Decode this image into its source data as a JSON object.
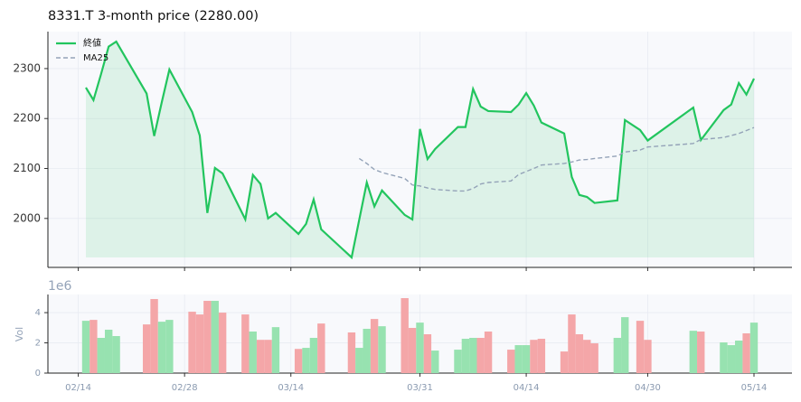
{
  "chart_data": [
    {
      "type": "line",
      "title": "8331.T  3-month price (2280.00)",
      "x": [
        "02/15",
        "02/16",
        "02/17",
        "02/18",
        "02/19",
        "02/23",
        "02/24",
        "02/25",
        "02/26",
        "03/01",
        "03/02",
        "03/03",
        "03/04",
        "03/05",
        "03/08",
        "03/09",
        "03/10",
        "03/11",
        "03/12",
        "03/15",
        "03/16",
        "03/17",
        "03/18",
        "03/22",
        "03/23",
        "03/24",
        "03/25",
        "03/26",
        "03/29",
        "03/30",
        "03/31",
        "04/01",
        "04/02",
        "04/05",
        "04/06",
        "04/07",
        "04/08",
        "04/09",
        "04/12",
        "04/13",
        "04/14",
        "04/15",
        "04/16",
        "04/19",
        "04/20",
        "04/21",
        "04/22",
        "04/23",
        "04/26",
        "04/27",
        "04/29",
        "04/30",
        "05/06",
        "05/07",
        "05/10",
        "05/11",
        "05/12",
        "05/13",
        "05/14"
      ],
      "series": [
        {
          "name": "終値",
          "color": "#22c55e",
          "style": "solid",
          "fill": true,
          "values": [
            2262,
            2237,
            2289,
            2344,
            2354,
            2250,
            2165,
            2233,
            2298,
            2213,
            2166,
            2011,
            2101,
            2090,
            1998,
            2087,
            2069,
            2000,
            2011,
            1969,
            1989,
            2038,
            1978,
            1922,
            1997,
            2072,
            2024,
            2056,
            2007,
            1998,
            2179,
            2119,
            2139,
            2183,
            2183,
            2259,
            2224,
            2215,
            2213,
            2228,
            2251,
            2226,
            2192,
            2170,
            2083,
            2047,
            2043,
            2031,
            2036,
            2197,
            2177,
            2156,
            2222,
            2157,
            2217,
            2228,
            2271,
            2248,
            2280
          ]
        },
        {
          "name": "MA25",
          "color": "#94a3b8",
          "style": "dashed",
          "fill": false,
          "values": [
            null,
            null,
            null,
            null,
            null,
            null,
            null,
            null,
            null,
            null,
            null,
            null,
            null,
            null,
            null,
            null,
            null,
            null,
            null,
            null,
            null,
            null,
            null,
            null,
            2120,
            2110,
            2098,
            2092,
            2080,
            2067,
            2065,
            2061,
            2058,
            2055,
            2055,
            2060,
            2069,
            2072,
            2075,
            2088,
            2094,
            2100,
            2107,
            2110,
            2113,
            2117,
            2118,
            2120,
            2125,
            2133,
            2137,
            2143,
            2150,
            2158,
            2162,
            2166,
            2170,
            2176,
            2182
          ]
        }
      ],
      "xlim": [
        "02/10",
        "05/19"
      ],
      "xticks": [
        "02/14",
        "02/28",
        "03/14",
        "03/31",
        "04/14",
        "04/30",
        "05/14"
      ],
      "ylim": [
        1902,
        2374
      ],
      "yticks": [
        2000,
        2100,
        2200,
        2300
      ],
      "grid": true,
      "legend": "upper left"
    },
    {
      "type": "bar",
      "y_label": "Vol",
      "y_offset_label": "1e6",
      "x": [
        "02/15",
        "02/16",
        "02/17",
        "02/18",
        "02/19",
        "02/23",
        "02/24",
        "02/25",
        "02/26",
        "03/01",
        "03/02",
        "03/03",
        "03/04",
        "03/05",
        "03/08",
        "03/09",
        "03/10",
        "03/11",
        "03/12",
        "03/15",
        "03/16",
        "03/17",
        "03/18",
        "03/22",
        "03/23",
        "03/24",
        "03/25",
        "03/26",
        "03/29",
        "03/30",
        "03/31",
        "04/01",
        "04/02",
        "04/05",
        "04/06",
        "04/07",
        "04/08",
        "04/09",
        "04/12",
        "04/13",
        "04/14",
        "04/15",
        "04/16",
        "04/19",
        "04/20",
        "04/21",
        "04/22",
        "04/23",
        "04/26",
        "04/27",
        "04/29",
        "04/30",
        "05/06",
        "05/07",
        "05/10",
        "05/11",
        "05/12",
        "05/13",
        "05/14"
      ],
      "values": [
        3.46,
        3.52,
        2.33,
        2.87,
        2.45,
        3.22,
        4.9,
        3.4,
        3.52,
        4.06,
        3.88,
        4.78,
        4.78,
        4.0,
        3.88,
        2.75,
        2.2,
        2.2,
        3.04,
        1.6,
        1.67,
        2.33,
        3.28,
        2.69,
        1.67,
        2.93,
        3.58,
        3.1,
        4.96,
        2.99,
        3.34,
        2.57,
        1.49,
        1.55,
        2.27,
        2.33,
        2.33,
        2.75,
        1.55,
        1.85,
        1.85,
        2.2,
        2.27,
        1.43,
        3.88,
        2.57,
        2.2,
        1.97,
        2.33,
        3.7,
        3.46,
        2.2,
        2.8,
        2.75,
        2.03,
        1.85,
        2.15,
        2.63,
        3.34
      ],
      "up_color": "#97e2b0",
      "down_color": "#f4a6a8",
      "xlim": [
        "02/10",
        "05/19"
      ],
      "xticks": [
        "02/14",
        "02/28",
        "03/14",
        "03/31",
        "04/14",
        "04/30",
        "05/14"
      ],
      "ylim": [
        0,
        5.2
      ],
      "yticks": [
        0,
        2,
        4
      ],
      "grid": true
    }
  ]
}
